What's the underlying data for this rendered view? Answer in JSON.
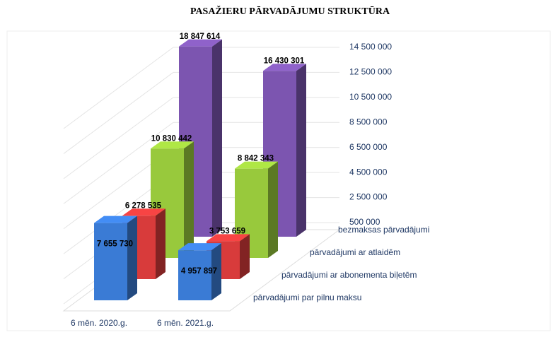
{
  "chart_data": {
    "type": "bar3d",
    "title": "PASAŽIERU PĀRVADĀJUMU STRUKTŪRA",
    "categories": [
      "6 mēn. 2020.g.",
      "6 mēn. 2021.g."
    ],
    "series": [
      {
        "name": "pārvadājumi par pilnu maksu",
        "color": "#3a7bd5",
        "values": [
          7655730,
          4957897
        ],
        "value_labels": [
          "7 655 730",
          "4 957 897"
        ]
      },
      {
        "name": "pārvadājumi ar abonementa biļetēm",
        "color": "#d83b3b",
        "values": [
          6278535,
          3753659
        ],
        "value_labels": [
          "6 278 535",
          "3 753 659"
        ]
      },
      {
        "name": "pārvadājumi ar atlaidēm",
        "color": "#98c93c",
        "values": [
          10830442,
          8842343
        ],
        "value_labels": [
          "10 830 442",
          "8 842 343"
        ]
      },
      {
        "name": "bezmaksas pārvadājumi",
        "color": "#7c55b0",
        "values": [
          18847614,
          16430301
        ],
        "value_labels": [
          "18 847 614",
          "16 430 301"
        ]
      }
    ],
    "ylim": [
      500000,
      14500000
    ],
    "yticks": [
      {
        "value": 500000,
        "label": "500 000"
      },
      {
        "value": 2500000,
        "label": "2 500 000"
      },
      {
        "value": 4500000,
        "label": "4 500 000"
      },
      {
        "value": 6500000,
        "label": "6 500 000"
      },
      {
        "value": 8500000,
        "label": "8 500 000"
      },
      {
        "value": 10500000,
        "label": "10 500 000"
      },
      {
        "value": 12500000,
        "label": "12 500 000"
      },
      {
        "value": 14500000,
        "label": "14 500 000"
      }
    ],
    "grid": true
  }
}
